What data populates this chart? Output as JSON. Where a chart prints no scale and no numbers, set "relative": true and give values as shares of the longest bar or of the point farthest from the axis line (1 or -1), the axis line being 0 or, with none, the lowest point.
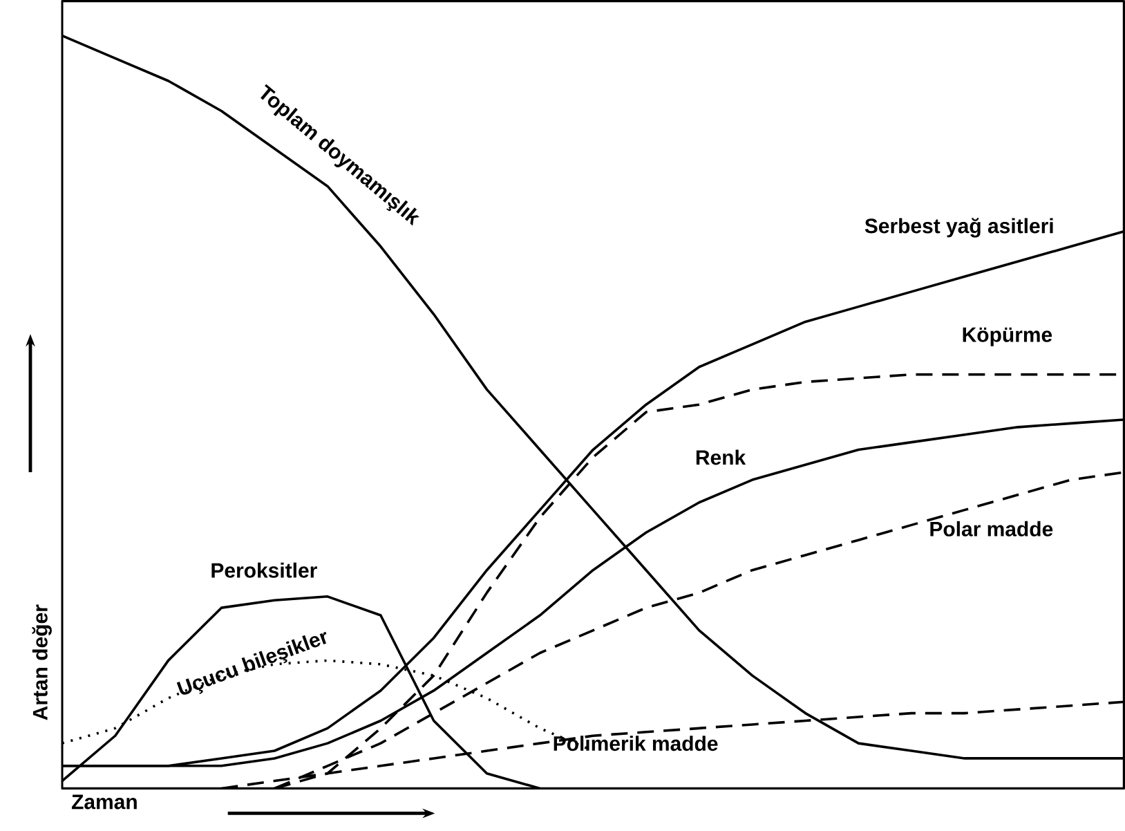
{
  "chart_data": {
    "type": "line",
    "relative": true,
    "xlabel": "Zaman",
    "ylabel": "Artan değer",
    "marker": "none",
    "categories": [
      null,
      null,
      null,
      null,
      null,
      null,
      null,
      null,
      null,
      null,
      null,
      null,
      null,
      null,
      null,
      null,
      null,
      null,
      null,
      null,
      null
    ],
    "series": [
      {
        "name": "Toplam doymamışlık",
        "color": "#000000",
        "line_style": "solid",
        "values": [
          1.0,
          0.97,
          0.94,
          0.9,
          0.85,
          0.8,
          0.72,
          0.63,
          0.53,
          0.45,
          0.37,
          0.29,
          0.21,
          0.15,
          0.1,
          0.06,
          0.05,
          0.04,
          0.04,
          0.04,
          0.04
        ]
      },
      {
        "name": "Serbest yağ asitleri",
        "color": "#000000",
        "line_style": "solid",
        "values": [
          0.03,
          0.03,
          0.03,
          0.04,
          0.05,
          0.08,
          0.13,
          0.2,
          0.29,
          0.37,
          0.45,
          0.51,
          0.56,
          0.59,
          0.62,
          0.64,
          0.66,
          0.68,
          0.7,
          0.72,
          0.74
        ]
      },
      {
        "name": "Köpürme",
        "color": "#000000",
        "line_style": "dashed",
        "values": [
          null,
          null,
          null,
          null,
          0.0,
          0.02,
          0.08,
          0.15,
          0.26,
          0.36,
          0.44,
          0.5,
          0.51,
          0.53,
          0.54,
          0.545,
          0.55,
          0.55,
          0.55,
          0.55,
          0.55
        ]
      },
      {
        "name": "Renk",
        "color": "#000000",
        "line_style": "solid",
        "values": [
          0.03,
          0.03,
          0.03,
          0.03,
          0.04,
          0.06,
          0.09,
          0.13,
          0.18,
          0.23,
          0.29,
          0.34,
          0.38,
          0.41,
          0.43,
          0.45,
          0.46,
          0.47,
          0.48,
          0.485,
          0.49
        ]
      },
      {
        "name": "Polar madde",
        "color": "#000000",
        "line_style": "dashed",
        "values": [
          null,
          null,
          null,
          null,
          0.0,
          0.03,
          0.06,
          0.1,
          0.14,
          0.18,
          0.21,
          0.24,
          0.26,
          0.29,
          0.31,
          0.33,
          0.35,
          0.37,
          0.39,
          0.41,
          0.42
        ]
      },
      {
        "name": "Polimerik madde",
        "color": "#000000",
        "line_style": "dashed",
        "values": [
          null,
          null,
          null,
          0.0,
          0.01,
          0.02,
          0.03,
          0.04,
          0.05,
          0.06,
          0.07,
          0.075,
          0.08,
          0.085,
          0.09,
          0.095,
          0.1,
          0.1,
          0.105,
          0.11,
          0.115
        ]
      },
      {
        "name": "Peroksitler",
        "color": "#000000",
        "line_style": "solid",
        "values": [
          0.01,
          0.07,
          0.17,
          0.24,
          0.25,
          0.255,
          0.23,
          0.09,
          0.02,
          0.0,
          null,
          null,
          null,
          null,
          null,
          null,
          null,
          null,
          null,
          null,
          null
        ]
      },
      {
        "name": "Uçucu bileşikler",
        "color": "#000000",
        "line_style": "dotted",
        "values": [
          0.06,
          0.08,
          0.12,
          0.15,
          0.165,
          0.17,
          0.165,
          0.15,
          0.12,
          0.08,
          0.05,
          null,
          null,
          null,
          null,
          null,
          null,
          null,
          null,
          null,
          null
        ]
      }
    ]
  }
}
